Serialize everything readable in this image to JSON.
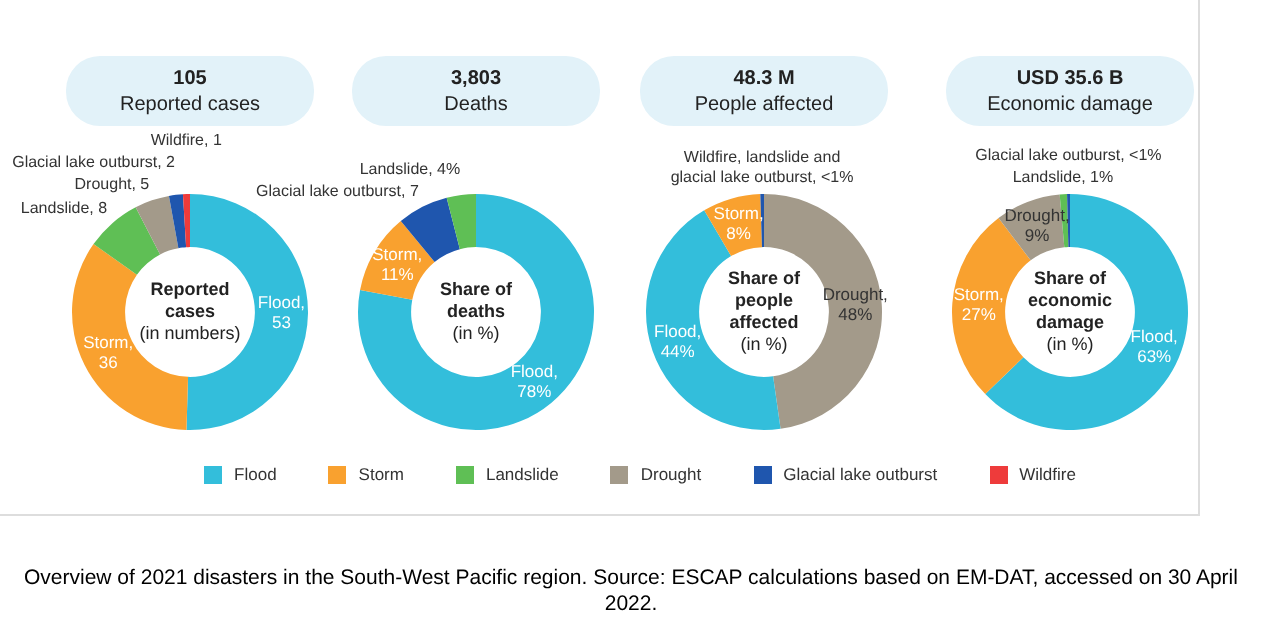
{
  "chart_data": [
    {
      "type": "donut",
      "title": "105",
      "subtitle": "Reported cases",
      "annotations": [
        "Reported cases",
        "(in numbers)",
        "Overview of 2021 disasters in the South-West Pacific region. Source: ESCAP calculations based on EM-DAT, accessed on 30 April 2022."
      ],
      "legend": "bottom",
      "categories": [
        "Flood",
        "Storm",
        "Landslide",
        "Drought",
        "Glacial lake outburst",
        "Wildfire"
      ],
      "values": [
        53,
        36,
        8,
        5,
        2,
        1
      ],
      "value_labels": [
        ", 53",
        ", 36",
        ", 8",
        ", 5",
        ", 2",
        ", 1"
      ],
      "colors": [
        "#33bedb",
        "#f9a12f",
        "#5fbf55",
        "#a39a8a",
        "#1f56ae",
        "#ee3b3b"
      ]
    },
    {
      "type": "donut",
      "title": "3,803",
      "subtitle": "Deaths",
      "annotations": [
        "Share of deaths",
        "(in %)"
      ],
      "categories": [
        "Flood",
        "Storm",
        "Glacial lake outburst",
        "Landslide"
      ],
      "values": [
        78,
        11,
        7,
        4
      ],
      "value_labels": [
        ", 78%",
        ", 11%",
        ", 7",
        ", 4%"
      ],
      "colors": [
        "#33bedb",
        "#f9a12f",
        "#1f56ae",
        "#5fbf55"
      ]
    },
    {
      "type": "donut",
      "title": "48.3 M",
      "subtitle": "People affected",
      "annotations": [
        "Share of people affected",
        "(in %)"
      ],
      "categories": [
        "Drought",
        "Flood",
        "Storm",
        "Wildfire, landslide and glacial lake outburst"
      ],
      "values": [
        48,
        44,
        8,
        0.5
      ],
      "value_labels": [
        ", 48%",
        ", 44%",
        ", 8%",
        ", <1%"
      ],
      "colors": [
        "#a39a8a",
        "#33bedb",
        "#f9a12f",
        "#1f56ae"
      ]
    },
    {
      "type": "donut",
      "title": "USD 35.6 B",
      "subtitle": "Economic damage",
      "annotations": [
        "Share of economic damage",
        "(in %)"
      ],
      "categories": [
        "Flood",
        "Storm",
        "Drought",
        "Landslide",
        "Glacial lake outburst"
      ],
      "values": [
        63,
        27,
        9,
        1,
        0.4
      ],
      "value_labels": [
        ", 63%",
        ", 27%",
        ", 9%",
        ", 1%",
        ", <1%"
      ],
      "colors": [
        "#33bedb",
        "#f9a12f",
        "#a39a8a",
        "#5fbf55",
        "#1f56ae"
      ]
    }
  ]
}
